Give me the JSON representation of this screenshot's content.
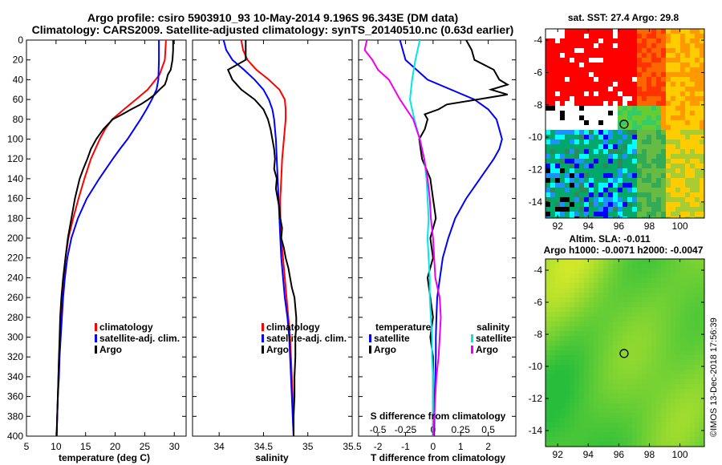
{
  "header": {
    "title_line1": "Argo profile: csiro 5903910_93 10-May-2014 9.196S 96.343E (DM data)",
    "title_line2": "Climatology: CARS2009. Satellite-adjusted climatology: synTS_20140510.nc (0.63d earlier)"
  },
  "credit": "©IMOS 13-Dec-2018 17:56:39",
  "colors": {
    "climatology": "#ff0000",
    "satellite": "#0000ff",
    "argo": "#000000",
    "satellite_s": "#00e5ee",
    "climatology_s": "#ee00ee"
  },
  "chart_data": [
    {
      "id": "temperature",
      "type": "line",
      "xlabel": "temperature (deg C)",
      "ylabel": "",
      "xlim": [
        5,
        32
      ],
      "xticks": [
        5,
        10,
        15,
        20,
        25,
        30
      ],
      "ylim": [
        400,
        0
      ],
      "yticks": [
        0,
        20,
        40,
        60,
        80,
        100,
        120,
        140,
        160,
        180,
        200,
        220,
        240,
        260,
        280,
        300,
        320,
        340,
        360,
        380,
        400
      ],
      "legend": [
        "climatology",
        "satellite-adj. clim.",
        "Argo"
      ],
      "series": [
        {
          "name": "climatology",
          "color": "#ff0000",
          "depth": [
            0,
            20,
            35,
            50,
            60,
            70,
            80,
            90,
            100,
            120,
            140,
            160,
            180,
            200,
            220,
            240,
            260,
            280,
            300,
            320,
            340,
            360,
            380,
            400
          ],
          "values": [
            28.6,
            28.4,
            27.5,
            25.5,
            23.5,
            21.5,
            19.5,
            18.3,
            17.4,
            15.9,
            14.8,
            13.8,
            12.9,
            12.1,
            11.6,
            11.3,
            11.1,
            10.9,
            10.7,
            10.5,
            10.4,
            10.3,
            10.2,
            10.1
          ]
        },
        {
          "name": "satellite-adj. clim.",
          "color": "#0000ff",
          "depth": [
            0,
            20,
            40,
            50,
            60,
            70,
            80,
            90,
            100,
            110,
            120,
            140,
            160,
            180,
            200,
            220,
            240,
            260,
            280,
            300,
            320,
            340,
            360,
            380,
            400
          ],
          "values": [
            27.4,
            27.4,
            27.3,
            27.0,
            26.2,
            25.3,
            24.3,
            23.2,
            22.1,
            20.8,
            19.6,
            17.3,
            15.2,
            13.7,
            12.6,
            11.9,
            11.5,
            11.2,
            11.0,
            10.8,
            10.6,
            10.5,
            10.3,
            10.2,
            10.1
          ]
        },
        {
          "name": "Argo",
          "color": "#000000",
          "depth": [
            0,
            10,
            20,
            30,
            35,
            40,
            45,
            50,
            55,
            60,
            65,
            70,
            75,
            80,
            85,
            90,
            95,
            100,
            110,
            120,
            130,
            140,
            160,
            180,
            200,
            220,
            240,
            260,
            280,
            300,
            320,
            340,
            360,
            380,
            400
          ],
          "values": [
            29.8,
            29.8,
            29.7,
            29.4,
            28.9,
            28.7,
            28.4,
            27.5,
            26.7,
            25.6,
            24.3,
            22.7,
            21.2,
            19.6,
            18.8,
            18.0,
            17.4,
            16.8,
            15.9,
            15.3,
            14.6,
            14.0,
            13.2,
            12.6,
            12.0,
            11.6,
            11.2,
            10.9,
            10.7,
            10.6,
            10.5,
            10.4,
            10.3,
            10.2,
            10.1
          ]
        }
      ]
    },
    {
      "id": "salinity",
      "type": "line",
      "xlabel": "salinity",
      "xlim": [
        33.7,
        35.5
      ],
      "xticks": [
        34,
        34.5,
        35,
        35.5
      ],
      "ylim": [
        400,
        0
      ],
      "legend": [
        "climatology",
        "satellite-adj. clim.",
        "Argo"
      ],
      "series": [
        {
          "name": "climatology",
          "color": "#ff0000",
          "depth": [
            0,
            10,
            20,
            30,
            40,
            50,
            60,
            70,
            80,
            90,
            100,
            120,
            140,
            160,
            180,
            200,
            220,
            240,
            260,
            280,
            300,
            320,
            340,
            360,
            380,
            400
          ],
          "values": [
            34.25,
            34.27,
            34.32,
            34.42,
            34.56,
            34.68,
            34.74,
            34.75,
            34.75,
            34.74,
            34.73,
            34.71,
            34.7,
            34.69,
            34.69,
            34.7,
            34.72,
            34.74,
            34.76,
            34.78,
            34.8,
            34.81,
            34.82,
            34.83,
            34.83,
            34.84
          ]
        },
        {
          "name": "satellite-adj. clim.",
          "color": "#0000ff",
          "depth": [
            0,
            10,
            20,
            30,
            40,
            50,
            60,
            70,
            80,
            100,
            120,
            140,
            160,
            180,
            200,
            220,
            240,
            260,
            280,
            300,
            320,
            340,
            360,
            380,
            400
          ],
          "values": [
            34.05,
            34.08,
            34.15,
            34.28,
            34.4,
            34.5,
            34.56,
            34.6,
            34.62,
            34.64,
            34.65,
            34.66,
            34.67,
            34.68,
            34.69,
            34.7,
            34.72,
            34.74,
            34.77,
            34.79,
            34.8,
            34.81,
            34.82,
            34.83,
            34.84
          ]
        },
        {
          "name": "Argo",
          "color": "#000000",
          "depth": [
            0,
            10,
            20,
            30,
            40,
            50,
            60,
            70,
            80,
            90,
            100,
            110,
            120,
            130,
            140,
            150,
            160,
            170,
            180,
            190,
            200,
            210,
            220,
            230,
            240,
            250,
            260,
            270,
            280,
            290,
            300,
            320,
            340,
            360,
            380,
            400
          ],
          "values": [
            34.3,
            34.3,
            34.3,
            34.1,
            34.15,
            34.25,
            34.4,
            34.5,
            34.55,
            34.58,
            34.6,
            34.62,
            34.63,
            34.62,
            34.65,
            34.64,
            34.66,
            34.68,
            34.69,
            34.71,
            34.7,
            34.73,
            34.75,
            34.78,
            34.8,
            34.82,
            34.85,
            34.86,
            34.87,
            34.87,
            34.86,
            34.86,
            34.85,
            34.85,
            34.84,
            34.84
          ]
        }
      ]
    },
    {
      "id": "difference",
      "type": "line",
      "xlabel": "T difference from climatology",
      "xlabel2": "S difference from climatology",
      "xlim": [
        -2.7,
        3.0
      ],
      "xticks": [
        -2,
        -1,
        0,
        1,
        2
      ],
      "xlim_s": [
        -0.675,
        0.75
      ],
      "xticks_s": [
        -0.5,
        -0.25,
        0,
        0.25,
        0.5
      ],
      "ylim": [
        400,
        0
      ],
      "legend_temperature_title": "temperature",
      "legend_salinity_title": "salinity",
      "legend_temperature": [
        "satellite",
        "Argo"
      ],
      "legend_salinity": [
        "satellite",
        "Argo"
      ],
      "series": [
        {
          "name": "T satellite",
          "color": "#0000ff",
          "axis": "T",
          "depth": [
            0,
            20,
            40,
            60,
            70,
            80,
            90,
            100,
            110,
            120,
            140,
            160,
            180,
            200,
            220,
            240,
            260,
            280,
            300,
            320,
            340,
            360,
            380,
            400
          ],
          "values": [
            -1.2,
            -1.0,
            -0.2,
            1.5,
            2.0,
            2.3,
            2.4,
            2.5,
            2.4,
            2.2,
            1.7,
            1.2,
            0.8,
            0.55,
            0.35,
            0.25,
            0.15,
            0.12,
            0.1,
            0.1,
            0.08,
            0.06,
            0.05,
            0.04
          ]
        },
        {
          "name": "T Argo",
          "color": "#000000",
          "axis": "T",
          "depth": [
            0,
            10,
            20,
            30,
            40,
            45,
            50,
            55,
            60,
            65,
            70,
            75,
            80,
            90,
            100,
            120,
            140,
            160,
            180,
            200,
            220,
            240,
            260,
            280,
            300,
            320,
            340,
            360,
            380,
            400
          ],
          "values": [
            1.2,
            1.4,
            1.5,
            2.2,
            2.4,
            2.7,
            2.1,
            2.7,
            1.6,
            0.5,
            0.2,
            -0.3,
            -0.2,
            -0.3,
            -0.5,
            -0.4,
            -0.1,
            0.0,
            0.1,
            -0.1,
            0.0,
            -0.2,
            -0.1,
            0.0,
            -0.1,
            0.0,
            0.0,
            0.0,
            0.0,
            0.0
          ]
        },
        {
          "name": "S satellite",
          "color": "#00e5ee",
          "axis": "S",
          "depth": [
            0,
            20,
            40,
            60,
            80,
            100,
            120,
            140,
            160,
            180,
            200,
            220,
            240,
            260,
            280,
            300,
            320,
            340,
            360,
            380,
            400
          ],
          "values": [
            -0.12,
            -0.16,
            -0.19,
            -0.21,
            -0.17,
            -0.12,
            -0.08,
            -0.06,
            -0.05,
            -0.04,
            -0.05,
            -0.04,
            -0.03,
            -0.03,
            -0.02,
            -0.01,
            -0.01,
            0.0,
            0.0,
            0.0,
            0.0
          ]
        },
        {
          "name": "S Argo",
          "color": "#ee00ee",
          "axis": "S",
          "depth": [
            0,
            10,
            20,
            30,
            40,
            50,
            60,
            80,
            100,
            120,
            140,
            160,
            180,
            200,
            220,
            240,
            260,
            280,
            300,
            320,
            340,
            360,
            380,
            400
          ],
          "values": [
            -0.6,
            -0.62,
            -0.55,
            -0.5,
            -0.4,
            -0.35,
            -0.3,
            -0.18,
            -0.12,
            -0.08,
            -0.05,
            -0.03,
            -0.02,
            0.0,
            0.01,
            0.02,
            0.06,
            0.07,
            0.06,
            0.05,
            0.03,
            0.02,
            0.01,
            0.0
          ]
        }
      ]
    },
    {
      "id": "sst_map",
      "type": "heatmap",
      "title": "sat. SST: 27.4  Argo: 29.8",
      "xticks": [
        92,
        94,
        96,
        98,
        100
      ],
      "yticks": [
        -4,
        -6,
        -8,
        -10,
        -12,
        -14
      ],
      "xlim": [
        91.2,
        101.6
      ],
      "ylim": [
        -15,
        -3.3
      ],
      "argo_position": [
        96.343,
        -9.196
      ]
    },
    {
      "id": "sla_map",
      "type": "heatmap",
      "title": "Altim. SLA: -0.011",
      "subtitle": "Argo h1000: -0.0071 h2000: -0.0047",
      "xticks": [
        92,
        94,
        96,
        98,
        100
      ],
      "yticks": [
        -4,
        -6,
        -8,
        -10,
        -12,
        -14
      ],
      "xlim": [
        91.2,
        101.6
      ],
      "ylim": [
        -15,
        -3.3
      ],
      "argo_position": [
        96.343,
        -9.196
      ]
    }
  ]
}
